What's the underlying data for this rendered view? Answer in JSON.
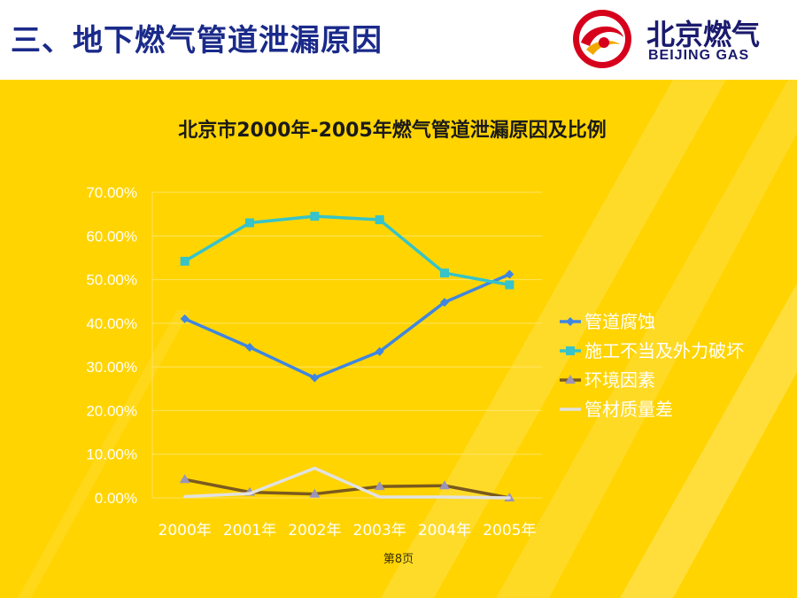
{
  "slide": {
    "title": "三、地下燃气管道泄漏原因",
    "page_label": "第8页"
  },
  "logo": {
    "name_cn": "北京燃气",
    "name_en": "BEIJING GAS",
    "color_primary": "#d6001c",
    "color_text": "#1a1a6e"
  },
  "colors": {
    "background": "#ffd400",
    "title": "#1a2a8a"
  },
  "chart_data": {
    "type": "line",
    "title": "北京市2000年-2005年燃气管道泄漏原因及比例",
    "categories": [
      "2000年",
      "2001年",
      "2002年",
      "2003年",
      "2004年",
      "2005年"
    ],
    "ylim": [
      0,
      0.7
    ],
    "yticks": [
      "0.00%",
      "10.00%",
      "20.00%",
      "30.00%",
      "40.00%",
      "50.00%",
      "60.00%",
      "70.00%"
    ],
    "legend_position": "right",
    "grid": true,
    "series": [
      {
        "name": "管道腐蚀",
        "color": "#3f86e0",
        "marker": "diamond",
        "values": [
          0.41,
          0.345,
          0.275,
          0.335,
          0.448,
          0.512
        ]
      },
      {
        "name": "施工不当及外力破坏",
        "color": "#36c3c9",
        "marker": "square",
        "values": [
          0.542,
          0.63,
          0.645,
          0.637,
          0.515,
          0.488
        ]
      },
      {
        "name": "环境因素",
        "color": "#7a5a1e",
        "marker": "triangle",
        "values": [
          0.042,
          0.013,
          0.009,
          0.026,
          0.028,
          0.0
        ]
      },
      {
        "name": "管材质量差",
        "color": "#e2e2e2",
        "marker": "none",
        "values": [
          0.003,
          0.01,
          0.068,
          0.002,
          0.002,
          0.0
        ]
      }
    ]
  }
}
